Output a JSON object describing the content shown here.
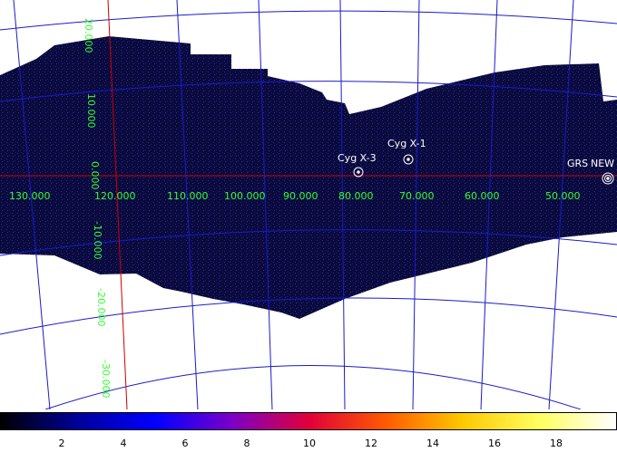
{
  "map": {
    "background": "#ffffff",
    "exposure_color": "#0a0a3a",
    "grid_color": "#1a1acc",
    "axis_color": "#cc0000",
    "label_color": "#33ff33",
    "source_color": "#ffffff",
    "lon_labels": [
      "130.000",
      "120.000",
      "110.000",
      "100.000",
      "90.000",
      "80.000",
      "70.000",
      "60.000",
      "50.000"
    ],
    "lat_labels": [
      "20.000",
      "10.000",
      "0.000",
      "-10.000",
      "-20.000",
      "-30.000"
    ],
    "sources": [
      "Cyg X-3",
      "Cyg X-1",
      "GRS",
      "NEW"
    ]
  },
  "colorbar": {
    "ticks": [
      "2",
      "4",
      "6",
      "8",
      "10",
      "12",
      "14",
      "16",
      "18"
    ],
    "colors": [
      "#000000",
      "#00009a",
      "#0000ff",
      "#7a00c8",
      "#e0003a",
      "#ff5a00",
      "#ffc800",
      "#ffff60",
      "#ffffff"
    ]
  }
}
